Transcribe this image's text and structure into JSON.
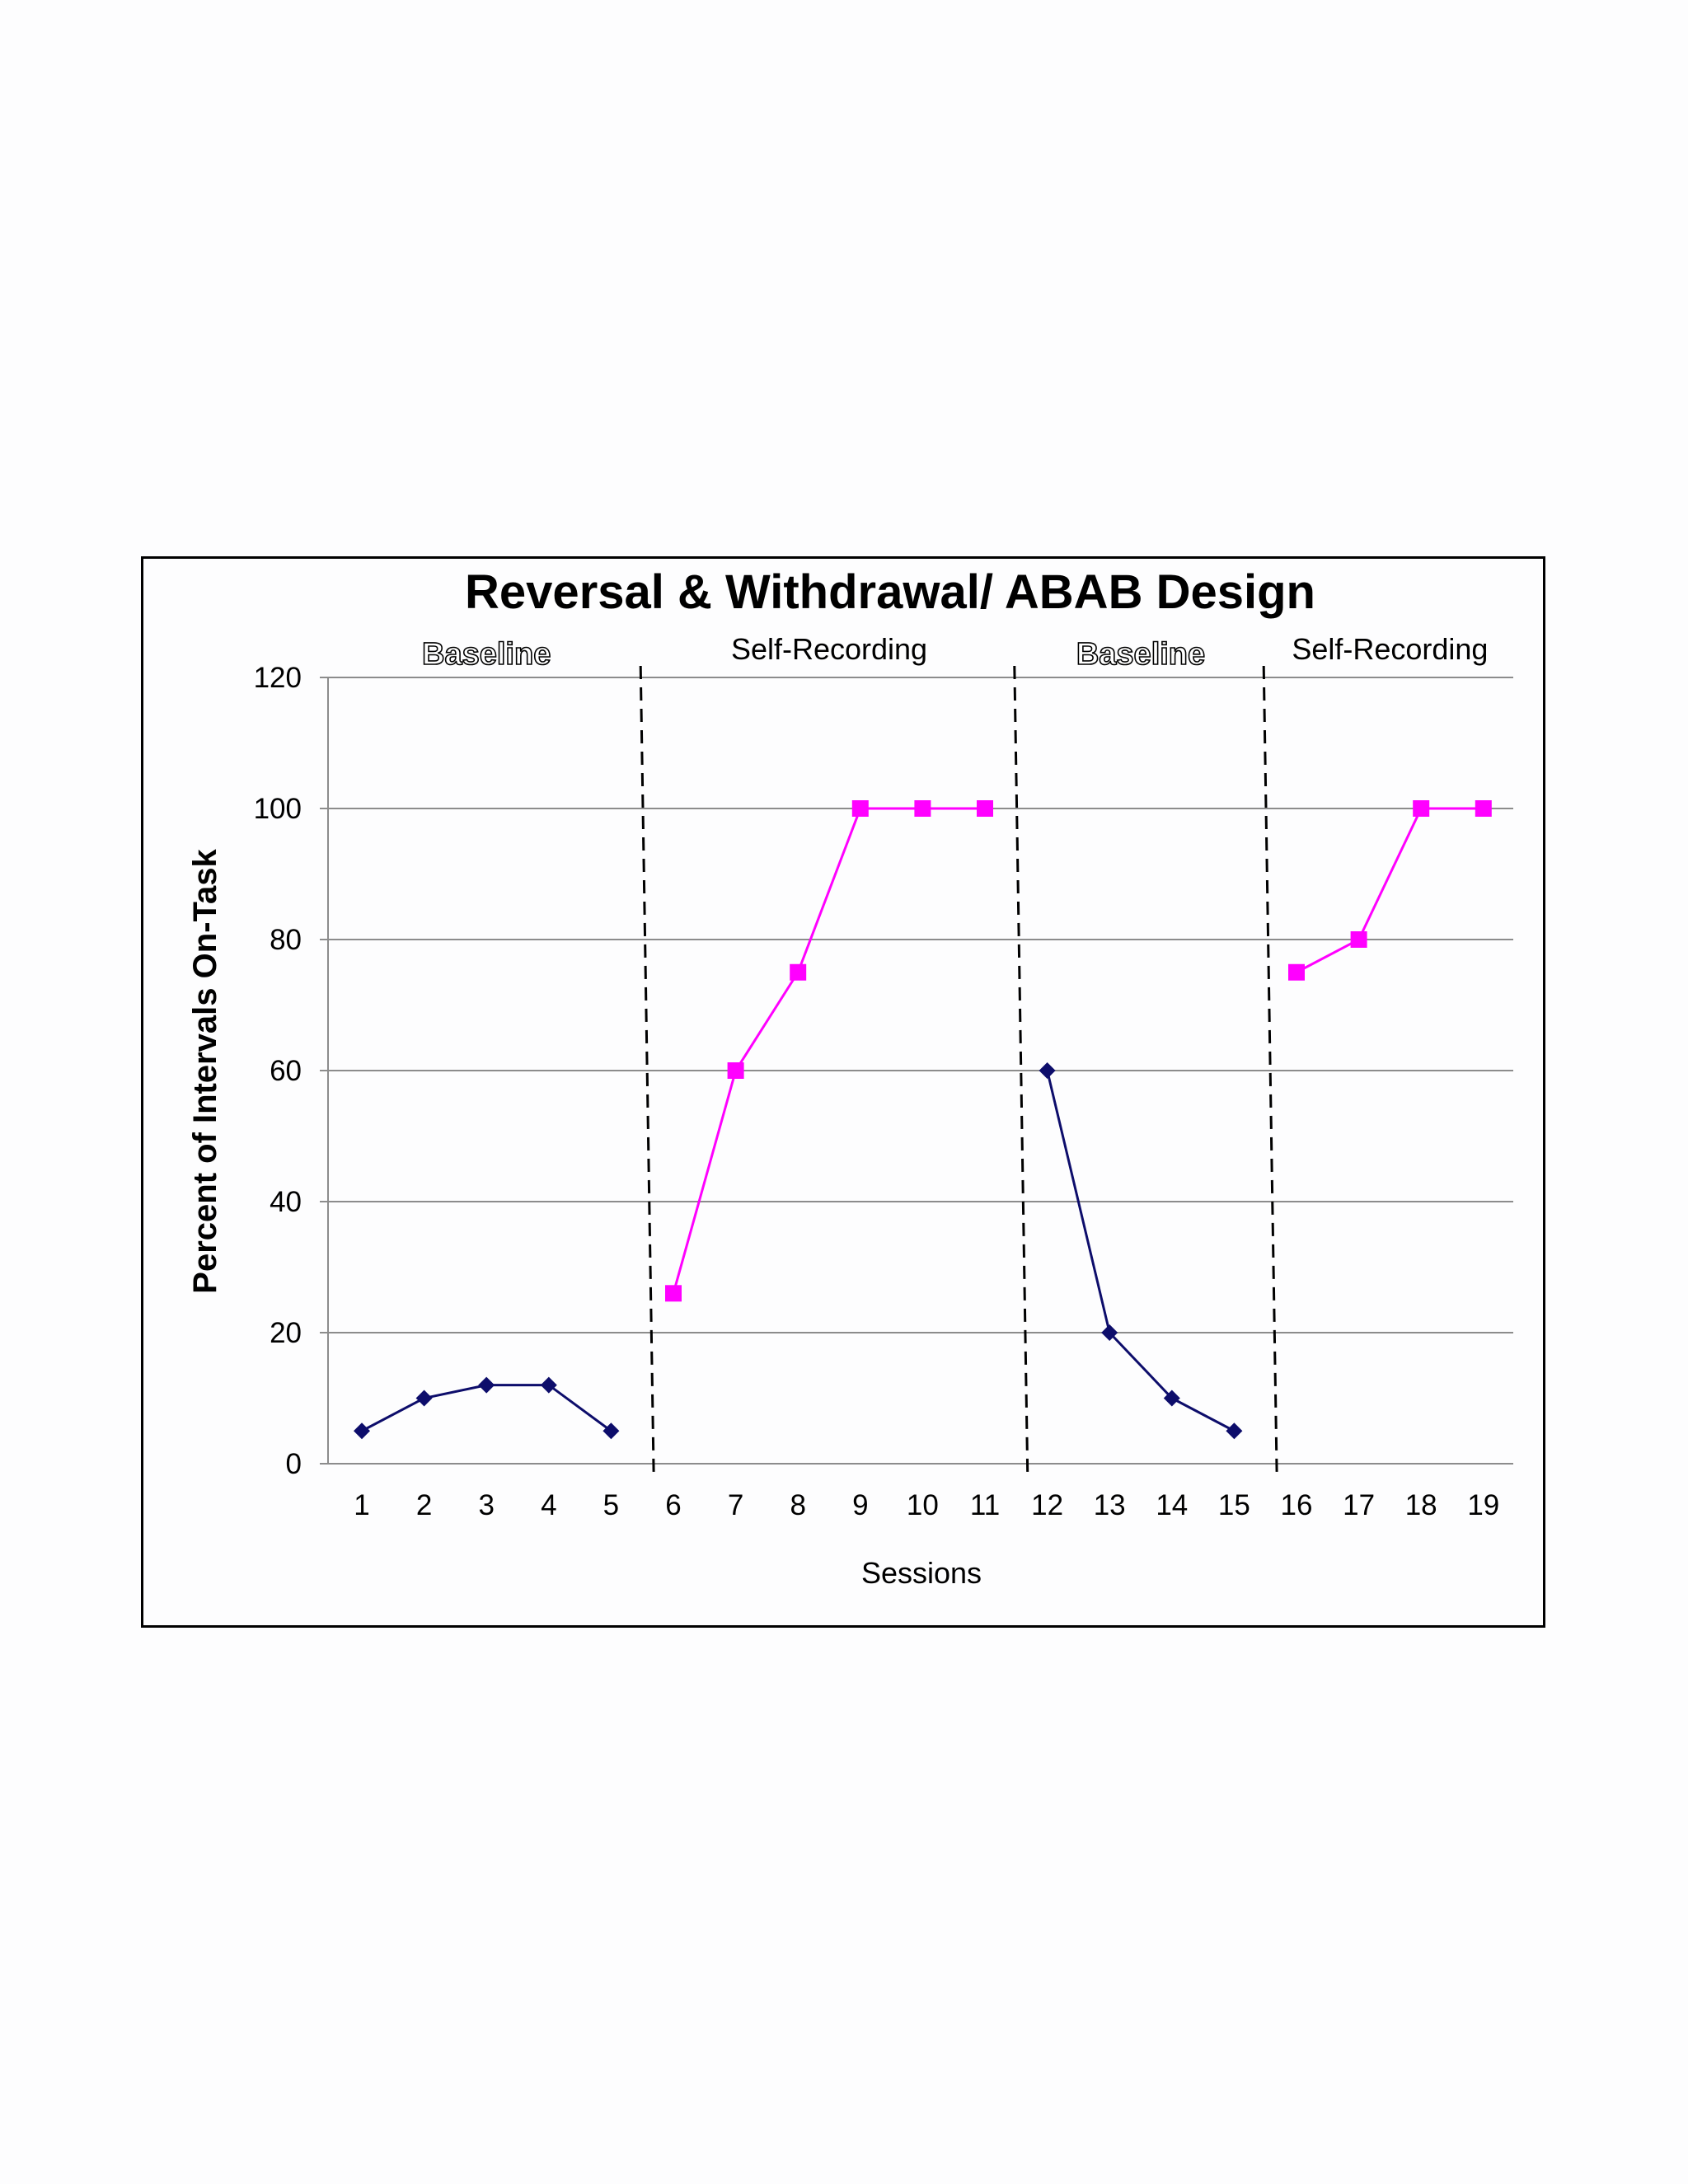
{
  "chart_data": {
    "type": "line",
    "title": "Reversal & Withdrawal/ ABAB Design",
    "xlabel": "Sessions",
    "ylabel": "Percent of Intervals On-Task",
    "ylim": [
      0,
      120
    ],
    "yticks": [
      0,
      20,
      40,
      60,
      80,
      100,
      120
    ],
    "x": [
      1,
      2,
      3,
      4,
      5,
      6,
      7,
      8,
      9,
      10,
      11,
      12,
      13,
      14,
      15,
      16,
      17,
      18,
      19
    ],
    "grid": "horizontal",
    "phases": [
      {
        "label": "Baseline",
        "kind": "baseline",
        "sessions": [
          1,
          5
        ]
      },
      {
        "label": "Self-Recording",
        "kind": "treatment",
        "sessions": [
          6,
          11
        ]
      },
      {
        "label": "Baseline",
        "kind": "baseline",
        "sessions": [
          12,
          15
        ]
      },
      {
        "label": "Self-Recording",
        "kind": "treatment",
        "sessions": [
          16,
          19
        ]
      }
    ],
    "series": [
      {
        "segment": "baseline-1",
        "color": "#0d0d6b",
        "marker": "diamond",
        "x": [
          1,
          2,
          3,
          4,
          5
        ],
        "y": [
          5,
          10,
          12,
          12,
          5
        ]
      },
      {
        "segment": "self-recording-1",
        "color": "#ff00ff",
        "marker": "square",
        "x": [
          6,
          7,
          8,
          9,
          10,
          11
        ],
        "y": [
          26,
          60,
          75,
          100,
          100,
          100
        ]
      },
      {
        "segment": "baseline-2",
        "color": "#0d0d6b",
        "marker": "diamond",
        "x": [
          12,
          13,
          14,
          15
        ],
        "y": [
          60,
          20,
          10,
          5
        ]
      },
      {
        "segment": "self-recording-2",
        "color": "#ff00ff",
        "marker": "square",
        "x": [
          16,
          17,
          18,
          19
        ],
        "y": [
          75,
          80,
          100,
          100
        ]
      }
    ]
  }
}
